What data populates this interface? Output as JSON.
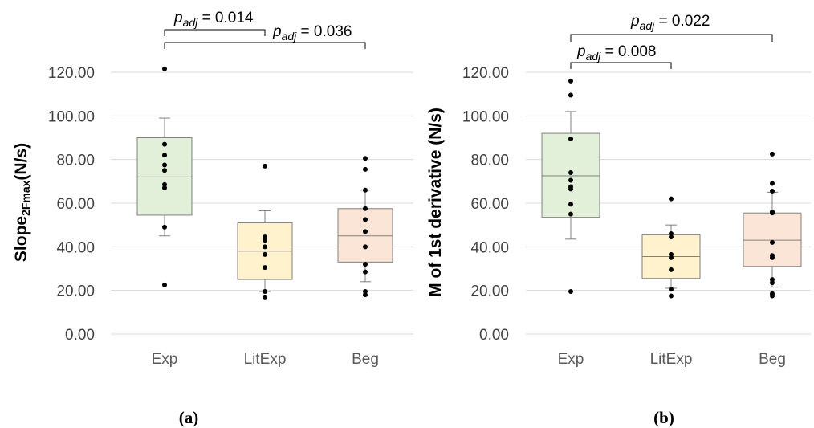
{
  "chart_data": [
    {
      "type": "box",
      "panel_label": "(a)",
      "ylabel": {
        "main": "Slope",
        "sub": "2Fmax",
        "unit": "(N/s)"
      },
      "ylim": [
        0,
        120
      ],
      "yticks": [
        "0.00",
        "20.00",
        "40.00",
        "60.00",
        "80.00",
        "100.00",
        "120.00"
      ],
      "grid": true,
      "categories": [
        "Exp",
        "LitExp",
        "Beg"
      ],
      "box_colors": [
        "#e2f0d9",
        "#fff2cc",
        "#fbe5d6"
      ],
      "boxes": [
        {
          "category": "Exp",
          "whisker_low": 45,
          "q1": 54.5,
          "median": 72,
          "q3": 90,
          "whisker_high": 99,
          "points": [
            121.5,
            87,
            82,
            77.5,
            75,
            68.5,
            67,
            49,
            22.5
          ]
        },
        {
          "category": "LitExp",
          "whisker_low": 19.5,
          "q1": 25,
          "median": 38,
          "q3": 51,
          "whisker_high": 56.5,
          "points": [
            77,
            44.5,
            43,
            40,
            36.5,
            30.5,
            19.5,
            17
          ]
        },
        {
          "category": "Beg",
          "whisker_low": 24,
          "q1": 33,
          "median": 45,
          "q3": 57.5,
          "whisker_high": 66,
          "points": [
            80.5,
            75.5,
            66,
            57.5,
            52.5,
            47,
            40,
            32,
            28.5,
            19.5,
            18
          ]
        }
      ],
      "annotations": [
        {
          "label_main": "p",
          "label_sub": "adj",
          "label_value": " = 0.014",
          "from": "Exp",
          "to": "LitExp"
        },
        {
          "label_main": "p",
          "label_sub": "adj",
          "label_value": " = 0.036",
          "from": "Exp",
          "to": "Beg"
        }
      ]
    },
    {
      "type": "box",
      "panel_label": "(b)",
      "ylabel": {
        "main": "M of 1st derivative (N/s)"
      },
      "ylim": [
        0,
        120
      ],
      "yticks": [
        "0.00",
        "20.00",
        "40.00",
        "60.00",
        "80.00",
        "100.00",
        "120.00"
      ],
      "grid": true,
      "categories": [
        "Exp",
        "LitExp",
        "Beg"
      ],
      "box_colors": [
        "#e2f0d9",
        "#fff2cc",
        "#fbe5d6"
      ],
      "boxes": [
        {
          "category": "Exp",
          "whisker_low": 43.5,
          "q1": 53.5,
          "median": 72.5,
          "q3": 92,
          "whisker_high": 102,
          "points": [
            116,
            109.5,
            89.5,
            74,
            70.5,
            67.5,
            66.5,
            59.5,
            55,
            19.5
          ]
        },
        {
          "category": "LitExp",
          "whisker_low": 21,
          "q1": 25.5,
          "median": 35.5,
          "q3": 45.5,
          "whisker_high": 50,
          "points": [
            62,
            46,
            44.5,
            36.5,
            35,
            29.5,
            20.5,
            17.5
          ]
        },
        {
          "category": "Beg",
          "whisker_low": 21.5,
          "q1": 31,
          "median": 43,
          "q3": 55.5,
          "whisker_high": 65,
          "points": [
            82.5,
            69,
            65.5,
            56,
            55.5,
            42,
            36,
            35,
            25,
            23.5,
            18.5,
            17.5
          ]
        }
      ],
      "annotations": [
        {
          "label_main": "p",
          "label_sub": "adj",
          "label_value": " = 0.022",
          "from": "Exp",
          "to": "Beg"
        },
        {
          "label_main": "p",
          "label_sub": "adj",
          "label_value": " = 0.008",
          "from": "Exp",
          "to": "LitExp"
        }
      ]
    }
  ]
}
